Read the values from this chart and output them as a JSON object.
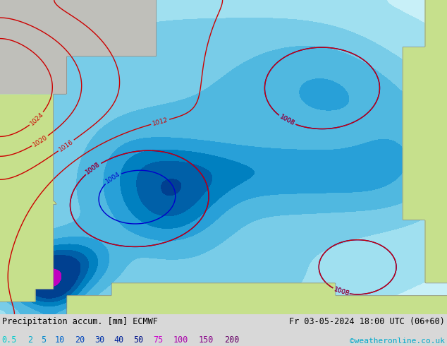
{
  "title_left": "Precipitation accum. [mm] ECMWF",
  "title_right": "Fr 03-05-2024 18:00 UTC (06+60)",
  "credit": "©weatheronline.co.uk",
  "legend_values": [
    "0.5",
    "2",
    "5",
    "10",
    "20",
    "30",
    "40",
    "50",
    "75",
    "100",
    "150",
    "200"
  ],
  "legend_text_colors": [
    "#00cccc",
    "#00aacc",
    "#0088cc",
    "#0066cc",
    "#0044bb",
    "#0033aa",
    "#002299",
    "#001188",
    "#cc00cc",
    "#aa00aa",
    "#880088",
    "#660066"
  ],
  "map_bg": "#b8dff0",
  "land_green": "#c8e096",
  "land_gray": "#c0c0b8",
  "isobar_blue": "#0000cc",
  "isobar_red": "#cc0000",
  "bottom_bg": "#d8d8d8",
  "text_color": "#000000",
  "credit_color": "#00aacc",
  "precip_levels": [
    0,
    0.5,
    2,
    5,
    10,
    20,
    30,
    40,
    50,
    75,
    100,
    150,
    200,
    300
  ],
  "precip_colors_map": [
    "#b8dff0",
    "#c8f0f8",
    "#a0e0f0",
    "#78cce8",
    "#50b8e0",
    "#28a0d8",
    "#0080c0",
    "#0060a8",
    "#004090",
    "#c000c0",
    "#980098",
    "#700070",
    "#480048"
  ],
  "fig_width": 6.34,
  "fig_height": 4.9,
  "dpi": 100
}
